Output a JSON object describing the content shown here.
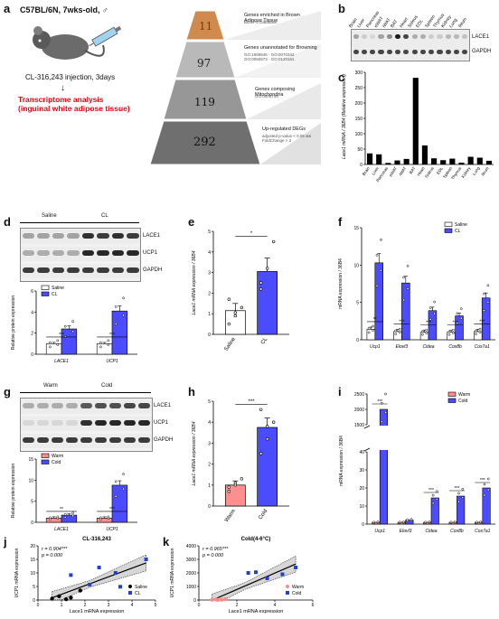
{
  "panels": {
    "a": {
      "label": "a",
      "mouse_info": "C57BL/6N, 7wks-old, ♂",
      "injection": "CL-316,243 injection, 3days",
      "analysis_title": "Transcriptome analysis",
      "analysis_sub": "(inguinal white adipose tissue)",
      "pyramid": [
        {
          "value": "11",
          "title": "Genes enriched in Brown Adipose Tissue",
          "sub": "BioGPS Database"
        },
        {
          "value": "97",
          "title": "Genes unannotated for Browning",
          "sub": "GO:1990845 · GO:0070342 · GO:0050873 · GO:0120161"
        },
        {
          "value": "119",
          "title": "Genes composing Mitochondria",
          "sub": "GO:0005739"
        },
        {
          "value": "292",
          "title": "Up-regulated DEGs",
          "sub": "adjusted p-value < 0.05 && FoldChange > 2"
        }
      ]
    },
    "b": {
      "label": "b",
      "lanes": [
        "Brain",
        "Liver",
        "Pancreas",
        "eWAT",
        "iWAT",
        "BAT",
        "Heart",
        "Soleus",
        "EDL",
        "Spleen",
        "Thymus",
        "Kidney",
        "Lung",
        "Ileum"
      ],
      "bands": [
        "LACE1",
        "GAPDH"
      ]
    },
    "c": {
      "label": "c",
      "ylabel": "Lace1 mRNA / 36B4 (Relative expression)"
    },
    "d": {
      "label": "d",
      "group1": "Saline",
      "group2": "CL",
      "bands": [
        "LACE1",
        "UCP1",
        "GAPDH"
      ],
      "ylabel": "Relative protein expression",
      "legend": [
        "Saline",
        "CL"
      ],
      "sig": [
        "***",
        "***"
      ]
    },
    "e": {
      "label": "e",
      "ylabel": "Lace1 mRNA expression / 36B4",
      "sig": "*"
    },
    "f": {
      "label": "f",
      "ylabel": "mRNA expression / 36B4",
      "legend": [
        "Saline",
        "CL"
      ],
      "sig": [
        "**",
        "***",
        "***",
        "***",
        "***"
      ]
    },
    "g": {
      "label": "g",
      "group1": "Warm",
      "group2": "Cold",
      "bands": [
        "LACE1",
        "UCP1",
        "GAPDH"
      ],
      "ylabel": "Relative protein expression",
      "legend": [
        "Warm",
        "Cold"
      ],
      "sig": [
        "**",
        "***"
      ]
    },
    "h": {
      "label": "h",
      "ylabel": "Lace1 mRNA expression / 36B4",
      "sig": "***"
    },
    "i": {
      "label": "i",
      "ylabel": "mRNA expression / 36B4",
      "legend": [
        "Warm",
        "Cold"
      ],
      "sig": [
        "***",
        "***",
        "***",
        "***"
      ]
    },
    "j": {
      "label": "j",
      "title": "CL-316,243",
      "stats_r": "r = 0.904***",
      "stats_p": "p = 0.000",
      "xlabel": "Lace1 mRNA expression",
      "ylabel": "UCP1 mRNA expression",
      "legend": [
        "Saline",
        "CL"
      ]
    },
    "k": {
      "label": "k",
      "title": "Cold(4-6°C)",
      "stats_r": "r = 0.965***",
      "stats_p": "p = 0.000",
      "xlabel": "Lace1 mRNA expression",
      "ylabel": "UCP1 mRNA expression",
      "legend": [
        "Warm",
        "Cold"
      ]
    }
  },
  "colors": {
    "saline": "#ffffff",
    "cl": "#4c4cff",
    "warm": "#ff8f8f",
    "cold": "#4c4cff",
    "bar": "#000000",
    "band": "#000000",
    "scatter_cl": "#1f3fd6",
    "scatter_warm": "#ff8a8a"
  },
  "chart_data": [
    {
      "id": "c",
      "type": "bar",
      "categories": [
        "Brain",
        "Liver",
        "Pancreas",
        "eWAT",
        "iWAT",
        "BAT",
        "Heart",
        "Soleus",
        "EDL",
        "Spleen",
        "Thymus",
        "Kidney",
        "Lung",
        "Ileum"
      ],
      "values": [
        36,
        33,
        5,
        13,
        18,
        282,
        62,
        20,
        14,
        19,
        6,
        25,
        22,
        12
      ],
      "ylim": [
        0,
        300
      ],
      "yticks": [
        0,
        50,
        100,
        150,
        200,
        250,
        300
      ]
    },
    {
      "id": "d",
      "type": "bar",
      "categories": [
        "LACE1",
        "UCP1"
      ],
      "ylim": [
        0,
        6
      ],
      "yticks": [
        0,
        2,
        4,
        6
      ],
      "series": [
        {
          "name": "Saline",
          "values": [
            1.0,
            1.0
          ]
        },
        {
          "name": "CL",
          "values": [
            2.4,
            4.1
          ]
        }
      ]
    },
    {
      "id": "e",
      "type": "bar",
      "categories": [
        "Saline",
        "CL"
      ],
      "values": [
        1.15,
        3.05
      ],
      "errors": [
        0.35,
        0.65
      ],
      "ylim": [
        0,
        5
      ],
      "yticks": [
        0,
        1,
        2,
        3,
        4,
        5
      ],
      "points": [
        [
          0.5,
          1.05,
          1.3,
          1.7,
          0.9
        ],
        [
          2.2,
          3.2,
          4.5,
          2.5
        ]
      ]
    },
    {
      "id": "f",
      "type": "bar",
      "categories": [
        "Ucp1",
        "Elovl3",
        "Cidea",
        "Cox8b",
        "Cox7a1"
      ],
      "ylim": [
        0,
        15
      ],
      "yticks": [
        0,
        5,
        10,
        15
      ],
      "series": [
        {
          "name": "Saline",
          "values": [
            1.4,
            1.1,
            1.0,
            1.0,
            1.1
          ]
        },
        {
          "name": "CL",
          "values": [
            10.3,
            7.6,
            3.9,
            3.2,
            5.6
          ]
        }
      ]
    },
    {
      "id": "g",
      "type": "bar",
      "categories": [
        "LACE1",
        "UCP1"
      ],
      "ylim": [
        0,
        15
      ],
      "yticks": [
        0,
        5,
        10,
        15
      ],
      "series": [
        {
          "name": "Warm",
          "values": [
            1.0,
            1.0
          ]
        },
        {
          "name": "Cold",
          "values": [
            1.7,
            8.8
          ]
        }
      ]
    },
    {
      "id": "h",
      "type": "bar",
      "categories": [
        "Warm",
        "Cold"
      ],
      "values": [
        1.0,
        3.75
      ],
      "errors": [
        0.2,
        0.45
      ],
      "ylim": [
        0,
        5
      ],
      "yticks": [
        0,
        1,
        2,
        3,
        4,
        5
      ],
      "points": [
        [
          0.7,
          1.0,
          1.3,
          0.9,
          1.1
        ],
        [
          2.5,
          3.2,
          4.0,
          4.6,
          3.8
        ]
      ]
    },
    {
      "id": "i",
      "type": "bar",
      "categories": [
        "Ucp1",
        "Elovl3",
        "Cidea",
        "Cox8b",
        "Cox7a1"
      ],
      "yticks": [
        0,
        10,
        20,
        30,
        40,
        1500,
        2000,
        2500
      ],
      "series": [
        {
          "name": "Warm",
          "values": [
            1.0,
            1.0,
            1.0,
            1.0,
            1.0
          ]
        },
        {
          "name": "Cold",
          "values": [
            2000,
            2.2,
            14.5,
            15.5,
            20
          ]
        }
      ]
    },
    {
      "id": "j",
      "type": "scatter",
      "xlim": [
        0,
        5
      ],
      "ylim": [
        0,
        20
      ],
      "xticks": [
        0,
        1,
        2,
        3,
        4,
        5
      ],
      "yticks": [
        0,
        5,
        10,
        15,
        20
      ],
      "series": [
        {
          "name": "Saline",
          "points": [
            [
              0.6,
              0.5
            ],
            [
              0.9,
              1.4
            ],
            [
              1.2,
              0.3
            ],
            [
              1.4,
              0.9
            ],
            [
              1.8,
              3.5
            ]
          ]
        },
        {
          "name": "CL",
          "points": [
            [
              1.4,
              9.2
            ],
            [
              2.2,
              5.7
            ],
            [
              2.6,
              12.0
            ],
            [
              3.5,
              4.9
            ],
            [
              3.3,
              10.0
            ],
            [
              4.6,
              15.0
            ]
          ]
        }
      ]
    },
    {
      "id": "k",
      "type": "scatter",
      "xlim": [
        0,
        6
      ],
      "ylim": [
        0,
        4000
      ],
      "xticks": [
        0,
        2,
        4,
        6
      ],
      "yticks": [
        0,
        1000,
        2000,
        3000,
        4000
      ],
      "series": [
        {
          "name": "Warm",
          "points": [
            [
              0.7,
              20
            ],
            [
              0.9,
              40
            ],
            [
              1.2,
              30
            ],
            [
              1.4,
              60
            ],
            [
              1.0,
              10
            ]
          ]
        },
        {
          "name": "Cold",
          "points": [
            [
              2.6,
              2000
            ],
            [
              3.0,
              2050
            ],
            [
              3.6,
              1600
            ],
            [
              4.4,
              1900
            ],
            [
              5.1,
              2400
            ]
          ]
        }
      ]
    }
  ]
}
